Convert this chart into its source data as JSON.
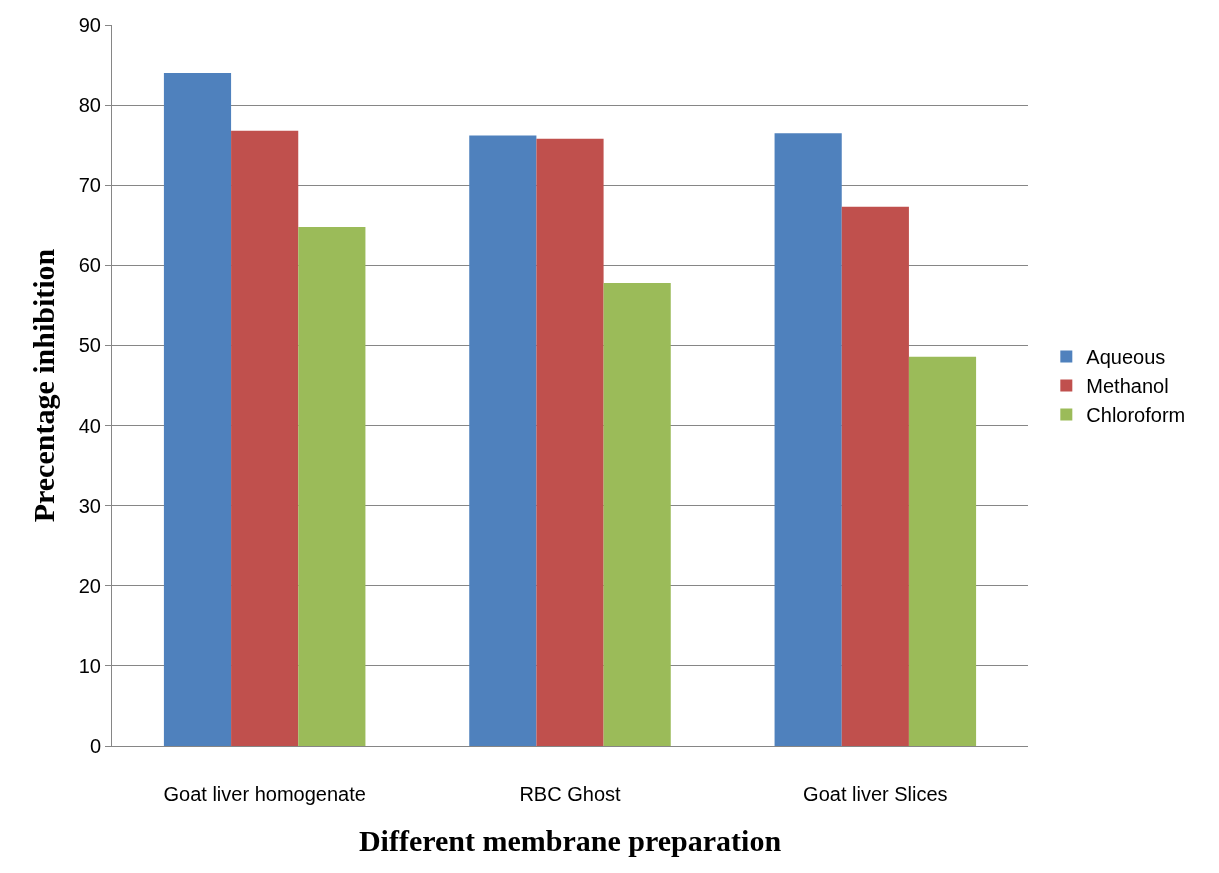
{
  "chart_data": {
    "type": "bar",
    "xlabel": "Different membrane preparation",
    "ylabel": "Precentage inhibition",
    "categories": [
      "Goat liver homogenate",
      "RBC Ghost",
      "Goat liver Slices"
    ],
    "series": [
      {
        "name": "Aqueous",
        "color": "#4f81bd",
        "values": [
          84.0,
          76.2,
          76.5
        ]
      },
      {
        "name": "Methanol",
        "color": "#c0504d",
        "values": [
          76.8,
          75.8,
          67.3
        ]
      },
      {
        "name": "Chloroform",
        "color": "#9bbb59",
        "values": [
          64.8,
          57.8,
          48.6
        ]
      }
    ],
    "ylim": [
      0,
      90
    ],
    "yticks": [
      0,
      10,
      20,
      30,
      40,
      50,
      60,
      70,
      80,
      90
    ],
    "grid": "y",
    "legend": "right"
  }
}
